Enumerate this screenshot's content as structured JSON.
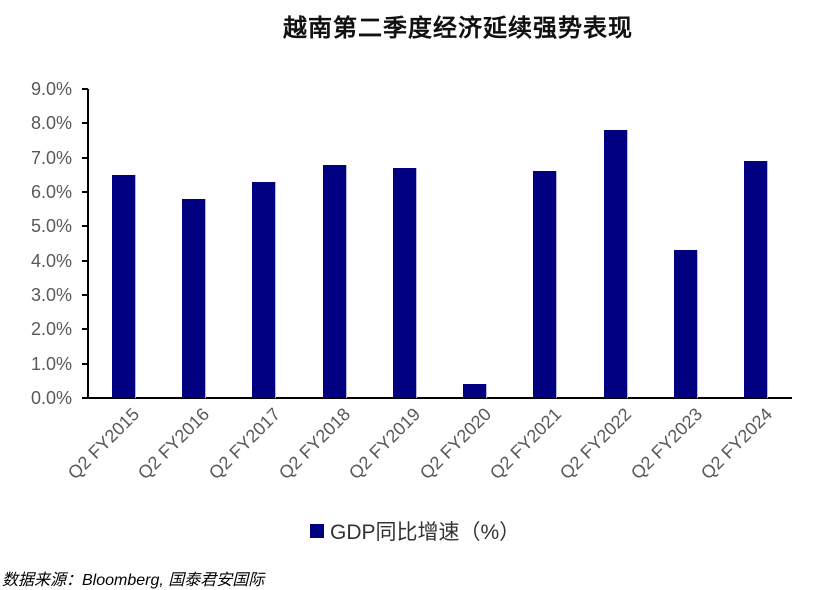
{
  "chart_data": {
    "type": "bar",
    "title": "越南第二季度经济延续强势表现",
    "categories": [
      "Q2 FY2015",
      "Q2 FY2016",
      "Q2 FY2017",
      "Q2 FY2018",
      "Q2 FY2019",
      "Q2 FY2020",
      "Q2 FY2021",
      "Q2 FY2022",
      "Q2 FY2023",
      "Q2 FY2024"
    ],
    "series": [
      {
        "name": "GDP同比增速（%）",
        "color": "#000080",
        "values": [
          6.5,
          5.8,
          6.3,
          6.8,
          6.7,
          0.4,
          6.6,
          7.8,
          4.3,
          6.9
        ]
      }
    ],
    "xlabel": "",
    "ylabel": "",
    "ylim": [
      0,
      9
    ],
    "yticks": [
      "0.0%",
      "1.0%",
      "2.0%",
      "3.0%",
      "4.0%",
      "5.0%",
      "6.0%",
      "7.0%",
      "8.0%",
      "9.0%"
    ],
    "grid": false,
    "legend_position": "bottom"
  },
  "header": {
    "title": "越南第二季度经济延续强势表现"
  },
  "legend": {
    "label": "GDP同比增速（%）"
  },
  "footer": {
    "source": "数据来源：Bloomberg, 国泰君安国际"
  }
}
